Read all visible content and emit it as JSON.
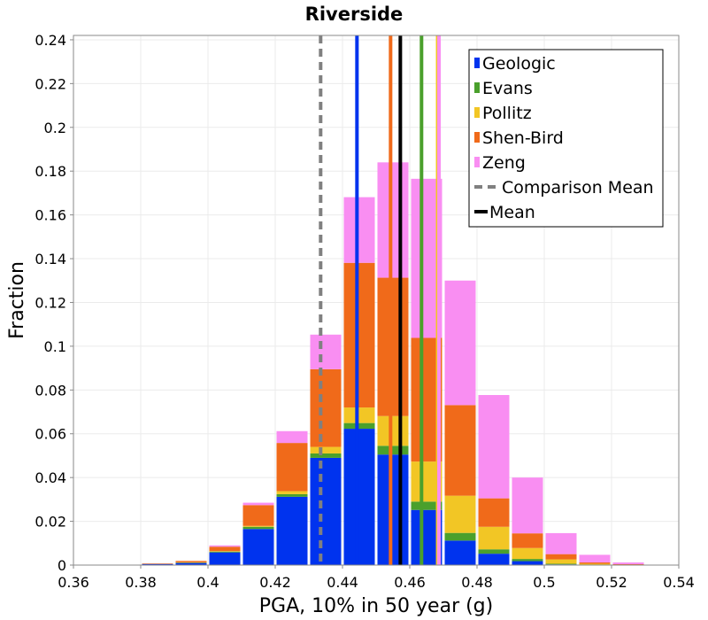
{
  "chart_data": {
    "type": "bar",
    "stacked": true,
    "title": "Riverside",
    "xlabel": "PGA, 10% in 50 year (g)",
    "ylabel": "Fraction",
    "xlim": [
      0.36,
      0.54
    ],
    "ylim": [
      0,
      0.242
    ],
    "xticks": [
      "0.36",
      "0.38",
      "0.4",
      "0.42",
      "0.44",
      "0.46",
      "0.48",
      "0.5",
      "0.52",
      "0.54"
    ],
    "yticks": [
      "0",
      "0.02",
      "0.04",
      "0.06",
      "0.08",
      "0.1",
      "0.12",
      "0.14",
      "0.16",
      "0.18",
      "0.2",
      "0.22",
      "0.24"
    ],
    "grid": true,
    "bin_width": 0.01,
    "bin_centers": [
      0.385,
      0.395,
      0.405,
      0.415,
      0.425,
      0.435,
      0.445,
      0.455,
      0.465,
      0.475,
      0.485,
      0.495,
      0.505,
      0.515,
      0.525,
      0.535
    ],
    "series": [
      {
        "name": "Geologic",
        "color": "#0033ee",
        "values": [
          0.0006,
          0.001,
          0.0058,
          0.0165,
          0.0312,
          0.049,
          0.0623,
          0.0505,
          0.0252,
          0.0112,
          0.0052,
          0.0018,
          0.0003,
          0.0,
          0.0,
          0.0
        ]
      },
      {
        "name": "Evans",
        "color": "#4aa02c",
        "values": [
          0.0,
          0.0002,
          0.0004,
          0.001,
          0.0012,
          0.002,
          0.0026,
          0.004,
          0.0038,
          0.0035,
          0.002,
          0.001,
          0.0003,
          0.0,
          0.0,
          0.0
        ]
      },
      {
        "name": "Pollitz",
        "color": "#f2c625",
        "values": [
          0.0,
          0.0001,
          0.0002,
          0.0004,
          0.0014,
          0.003,
          0.0071,
          0.0136,
          0.0183,
          0.017,
          0.0103,
          0.005,
          0.002,
          0.0006,
          0.0002,
          0.0
        ]
      },
      {
        "name": "Shen-Bird",
        "color": "#f06a1a",
        "values": [
          0.0001,
          0.0006,
          0.002,
          0.0095,
          0.022,
          0.0355,
          0.0661,
          0.0632,
          0.0565,
          0.0414,
          0.013,
          0.0067,
          0.0024,
          0.0006,
          0.0002,
          0.0
        ]
      },
      {
        "name": "Zeng",
        "color": "#f98ef2",
        "values": [
          0.0,
          0.0,
          0.0006,
          0.0011,
          0.0054,
          0.0158,
          0.03,
          0.0527,
          0.0727,
          0.0569,
          0.0472,
          0.0255,
          0.0096,
          0.0035,
          0.0008,
          0.0002
        ]
      }
    ],
    "vertical_lines": [
      {
        "x": 0.4335,
        "label": "Comparison Mean",
        "color": "#808080",
        "dashed": true
      },
      {
        "x": 0.4572,
        "label": "Mean",
        "color": "#000000",
        "dashed": false
      },
      {
        "x": 0.4443,
        "color": "#0033ee"
      },
      {
        "x": 0.4635,
        "color": "#4aa02c"
      },
      {
        "x": 0.4683,
        "color": "#f2c625"
      },
      {
        "x": 0.4543,
        "color": "#f06a1a"
      },
      {
        "x": 0.4687,
        "color": "#f98ef2"
      }
    ],
    "legend": {
      "position": "top-right",
      "entries": [
        {
          "label": "Geologic",
          "color": "#0033ee",
          "kind": "box"
        },
        {
          "label": "Evans",
          "color": "#4aa02c",
          "kind": "box"
        },
        {
          "label": "Pollitz",
          "color": "#f2c625",
          "kind": "box"
        },
        {
          "label": "Shen-Bird",
          "color": "#f06a1a",
          "kind": "box"
        },
        {
          "label": "Zeng",
          "color": "#f98ef2",
          "kind": "box"
        },
        {
          "label": "Comparison Mean",
          "color": "#808080",
          "kind": "dash"
        },
        {
          "label": "Mean",
          "color": "#000000",
          "kind": "line"
        }
      ]
    }
  }
}
